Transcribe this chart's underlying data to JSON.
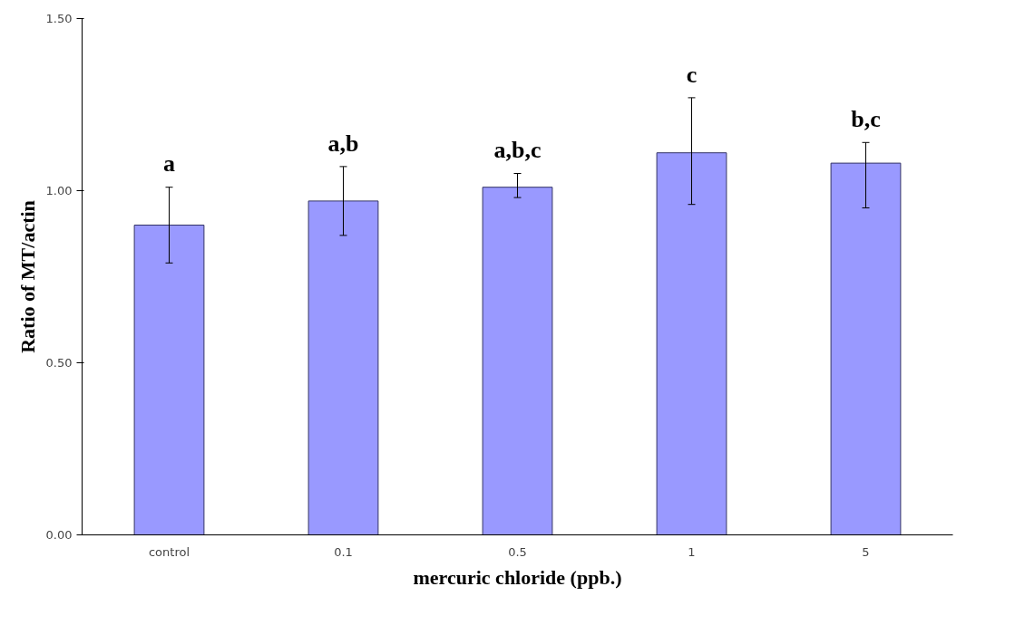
{
  "chart_data": {
    "type": "bar",
    "xlabel": "mercuric chloride (ppb.)",
    "ylabel": "Ratio of MT/actin",
    "categories": [
      "control",
      "0.1",
      "0.5",
      "1",
      "5"
    ],
    "values": [
      0.9,
      0.97,
      1.01,
      1.11,
      1.08
    ],
    "errors": [
      [
        0.79,
        1.01
      ],
      [
        0.87,
        1.07
      ],
      [
        0.98,
        1.05
      ],
      [
        0.96,
        1.27
      ],
      [
        0.95,
        1.14
      ]
    ],
    "color": "#9999ff",
    "ylim": [
      0,
      1.5
    ],
    "yticks": [
      {
        "value": 0,
        "label": "0.00"
      },
      {
        "value": 0.5,
        "label": "0.50"
      },
      {
        "value": 1.0,
        "label": "1.00"
      },
      {
        "value": 1.5,
        "label": "1.50"
      }
    ],
    "annotations": [
      "a",
      "a,b",
      "a,b,c",
      "c",
      "b,c"
    ],
    "grid": false
  }
}
